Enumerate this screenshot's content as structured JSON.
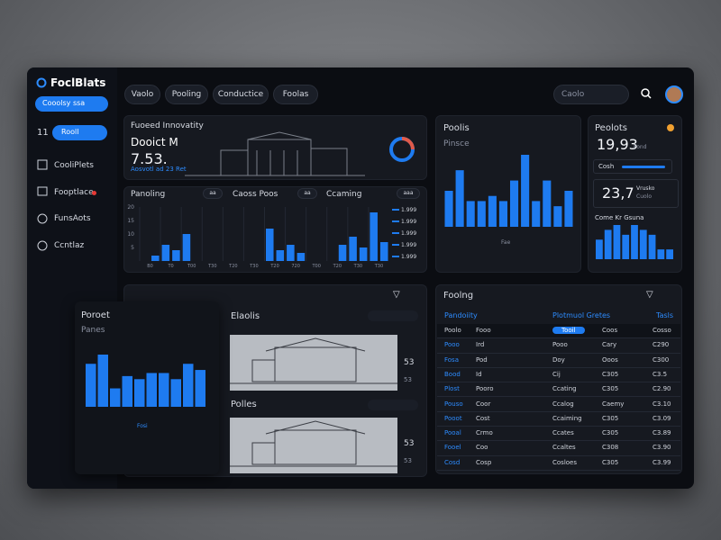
{
  "sidebar": {
    "brand": "FoclBlats",
    "action": "Cooolsy ssa",
    "filter_badge": "11",
    "filter": "Rooll",
    "nav": [
      "CooliPlets",
      "Fooptlace",
      "FunsAots",
      "Ccntlaz"
    ]
  },
  "topbar": {
    "tabs": [
      "Vaolo",
      "Pooling",
      "Conductice",
      "Foolas"
    ],
    "search": "Caolo"
  },
  "overview": {
    "title": "Fuoeed Innovatity",
    "heading": "Dooict M",
    "value": "7.53.",
    "note": "Aosvotl ad 23 Ret"
  },
  "activity": {
    "tabs": [
      "Panoling",
      "Caoss Poos",
      "Ccaming"
    ],
    "filters": [
      "aa",
      "aa",
      "aaa"
    ],
    "ylim": [
      0,
      20
    ],
    "yticks": [
      5,
      10,
      15,
      20
    ],
    "x_labels": [
      "B0",
      "T0",
      "T00",
      "T30",
      "T20",
      "T30",
      "T20",
      "720",
      "T00",
      "T20",
      "T30",
      "T30"
    ],
    "values": [
      null,
      2,
      6,
      4,
      10,
      null,
      null,
      null,
      null,
      null,
      null,
      null,
      12,
      4,
      6,
      3,
      null,
      null,
      null,
      6,
      9,
      5,
      18,
      7
    ],
    "legend": [
      "1.999",
      "1.999",
      "1.999",
      "1.999",
      "1.999"
    ]
  },
  "projects": {
    "title": "Poolis",
    "subtitle": "Pinsce",
    "caption": "Fae",
    "values": [
      7,
      11,
      5,
      5,
      6,
      5,
      9,
      14,
      5,
      9,
      4,
      7
    ]
  },
  "products": {
    "title": "Peolots",
    "value": "19,93",
    "unit": "Fond",
    "progress_label": "Cosh",
    "value2": "23,7",
    "sub_a": "Vrusko",
    "sub_b": "Cuolo",
    "chart_title": "Come Kr Gsuna",
    "values": [
      4,
      6,
      7,
      5,
      7,
      6,
      5,
      2,
      2
    ]
  },
  "report": {
    "title": "Poroet",
    "subtitle": "Panes",
    "caption": "Fosi",
    "values": [
      7,
      8.5,
      3,
      5,
      4.5,
      5.5,
      5.5,
      4.5,
      7,
      6
    ]
  },
  "gallery": {
    "items": [
      {
        "title": "Elaolis",
        "stats": [
          "53",
          "53"
        ]
      },
      {
        "title": "Polles",
        "stats": [
          "53",
          "53"
        ]
      }
    ]
  },
  "table": {
    "title": "Foolng",
    "groups": [
      "Pandoiity",
      "Plotmuol Gretes",
      "Tasls"
    ],
    "columns": [
      "Poolo",
      "Fooo",
      "Tooil",
      "Coos",
      "Cosso"
    ],
    "rows": [
      [
        "Pooo",
        "Ird",
        "Pooo",
        "Cary",
        "C290"
      ],
      [
        "Fosa",
        "Pod",
        "Doy",
        "Ooos",
        "C300"
      ],
      [
        "Bood",
        "Id",
        "Cij",
        "C305",
        "C3.5"
      ],
      [
        "Plost",
        "Pooro",
        "Ccating",
        "C305",
        "C2.90"
      ],
      [
        "Pouso",
        "Coor",
        "Ccalog",
        "Caemy",
        "C3.10"
      ],
      [
        "Pooot",
        "Cost",
        "Ccaiming",
        "C305",
        "C3.09"
      ],
      [
        "Pooal",
        "Crmo",
        "Ccates",
        "C305",
        "C3.89"
      ],
      [
        "Fooel",
        "Coo",
        "Ccaltes",
        "C308",
        "C3.90"
      ],
      [
        "Cosd",
        "Cosp",
        "Cosloes",
        "C305",
        "C3.99"
      ]
    ]
  }
}
